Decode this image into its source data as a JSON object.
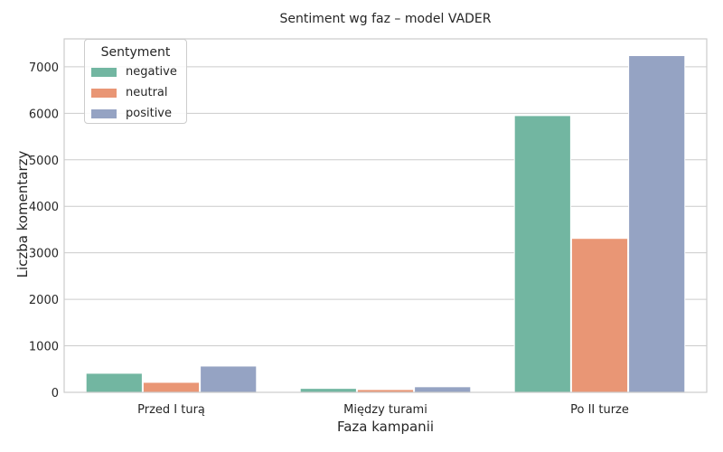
{
  "chart_data": {
    "type": "bar",
    "title": "Sentiment wg faz – model VADER",
    "xlabel": "Faza kampanii",
    "ylabel": "Liczba komentarzy",
    "categories": [
      "Przed I turą",
      "Między turami",
      "Po II turze"
    ],
    "series": [
      {
        "name": "negative",
        "color": "#72b6a1",
        "values": [
          410,
          85,
          5950
        ]
      },
      {
        "name": "neutral",
        "color": "#e99675",
        "values": [
          215,
          60,
          3310
        ]
      },
      {
        "name": "positive",
        "color": "#95a3c3",
        "values": [
          565,
          120,
          7240
        ]
      }
    ],
    "ylim": [
      0,
      7600
    ],
    "yticks": [
      0,
      1000,
      2000,
      3000,
      4000,
      5000,
      6000,
      7000
    ],
    "grid": true,
    "legend": {
      "title": "Sentyment",
      "position": "top-left"
    }
  }
}
